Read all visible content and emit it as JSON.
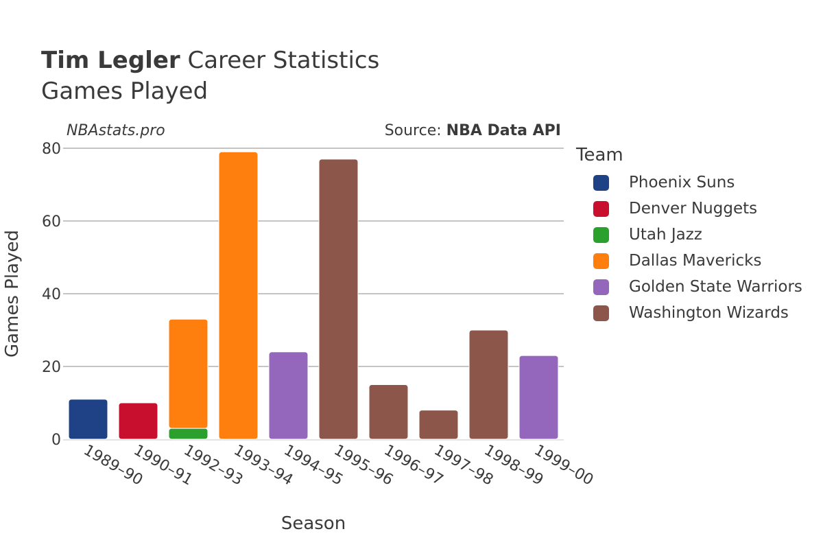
{
  "title": {
    "bold": "Tim Legler",
    "rest": " Career Statistics",
    "subtitle": "Games Played"
  },
  "watermark": "NBAstats.pro",
  "source": {
    "prefix": "Source: ",
    "name": "NBA Data API"
  },
  "legend": {
    "title": "Team"
  },
  "chart_data": {
    "type": "bar",
    "stacked": true,
    "xlabel": "Season",
    "ylabel": "Games Played",
    "ylim": [
      0,
      80
    ],
    "yticks": [
      0,
      20,
      40,
      60,
      80
    ],
    "grid": true,
    "legend_position": "right",
    "categories": [
      "1989–90",
      "1990–91",
      "1992–93",
      "1993–94",
      "1994–95",
      "1995–96",
      "1996–97",
      "1997–98",
      "1998–99",
      "1999–00"
    ],
    "series": [
      {
        "name": "Phoenix Suns",
        "color": "#1f4287",
        "values": [
          11,
          0,
          0,
          0,
          0,
          0,
          0,
          0,
          0,
          0
        ]
      },
      {
        "name": "Denver Nuggets",
        "color": "#c8102e",
        "values": [
          0,
          10,
          0,
          0,
          0,
          0,
          0,
          0,
          0,
          0
        ]
      },
      {
        "name": "Utah Jazz",
        "color": "#2ca02c",
        "values": [
          0,
          0,
          3,
          0,
          0,
          0,
          0,
          0,
          0,
          0
        ]
      },
      {
        "name": "Dallas Mavericks",
        "color": "#ff7f0e",
        "values": [
          0,
          0,
          30,
          79,
          0,
          0,
          0,
          0,
          0,
          0
        ]
      },
      {
        "name": "Golden State Warriors",
        "color": "#9467bd",
        "values": [
          0,
          0,
          0,
          0,
          24,
          0,
          0,
          0,
          0,
          23
        ]
      },
      {
        "name": "Washington Wizards",
        "color": "#8c564b",
        "values": [
          0,
          0,
          0,
          0,
          0,
          77,
          15,
          8,
          30,
          0
        ]
      }
    ]
  }
}
